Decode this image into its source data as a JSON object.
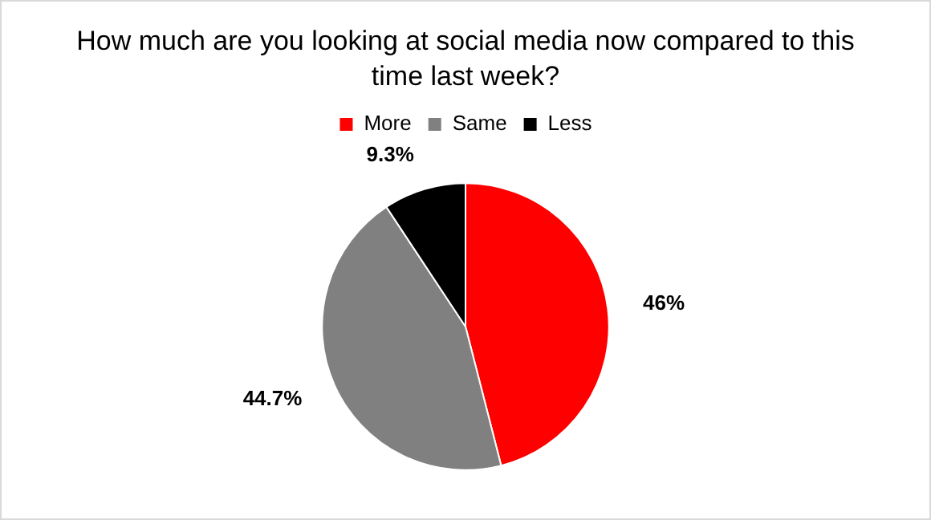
{
  "chart_data": {
    "type": "pie",
    "title": "How much are you looking at social media now compared to this time last week?",
    "categories": [
      "More",
      "Same",
      "Less"
    ],
    "values": [
      46,
      44.7,
      9.3
    ],
    "colors": [
      "#ff0000",
      "#808080",
      "#000000"
    ],
    "value_labels": [
      "46%",
      "44.7%",
      "9.3%"
    ],
    "legend": "top"
  }
}
